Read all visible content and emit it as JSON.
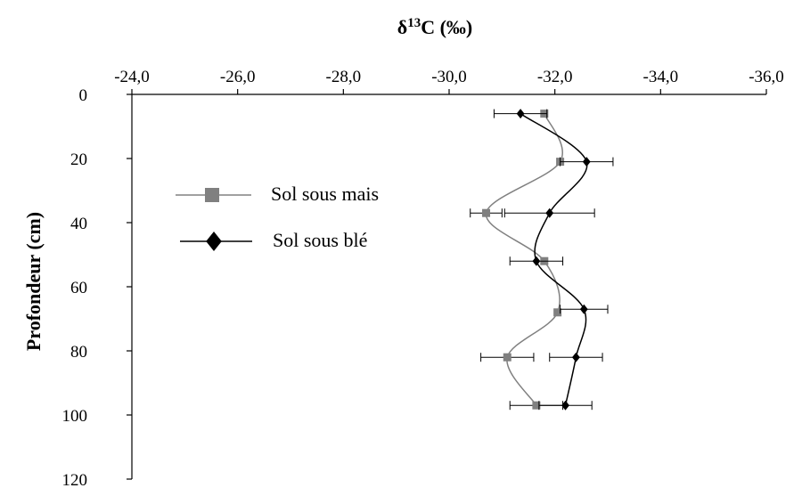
{
  "chart_data": {
    "type": "line",
    "xlabel": "δ13C (‰)",
    "xlabel_parts": {
      "prefix": "δ",
      "superscript": "13",
      "suffix": "C (‰)"
    },
    "ylabel": "Profondeur (cm)",
    "x_axis_position": "top",
    "x_reversed": true,
    "xlim": [
      -24.0,
      -36.0
    ],
    "ylim": [
      0,
      120
    ],
    "y_reversed": true,
    "x_ticks": [
      -24.0,
      -26.0,
      -28.0,
      -30.0,
      -32.0,
      -34.0,
      -36.0
    ],
    "x_tick_labels": [
      "-24,0",
      "-26,0",
      "-28,0",
      "-30,0",
      "-32,0",
      "-34,0",
      "-36,0"
    ],
    "y_ticks": [
      0,
      20,
      40,
      60,
      80,
      100,
      120
    ],
    "y_tick_labels": [
      "0",
      "20",
      "40",
      "60",
      "80",
      "100",
      "120"
    ],
    "grid": false,
    "legend_position": "left-center",
    "series": [
      {
        "name": "Sol sous mais",
        "color": "#808080",
        "marker": "square",
        "smooth": true,
        "points": [
          {
            "x": -31.8,
            "y": 6,
            "err": 0
          },
          {
            "x": -32.1,
            "y": 21,
            "err": 0
          },
          {
            "x": -30.7,
            "y": 37,
            "err": 0.3
          },
          {
            "x": -31.8,
            "y": 52,
            "err": 0
          },
          {
            "x": -32.05,
            "y": 68,
            "err": 0
          },
          {
            "x": -31.1,
            "y": 82,
            "err": 0.5
          },
          {
            "x": -31.65,
            "y": 97,
            "err": 0.5
          }
        ]
      },
      {
        "name": "Sol sous blé",
        "color": "#000000",
        "marker": "diamond",
        "smooth": true,
        "points": [
          {
            "x": -31.35,
            "y": 6,
            "err": 0.5
          },
          {
            "x": -32.6,
            "y": 21,
            "err": 0.5
          },
          {
            "x": -31.9,
            "y": 37,
            "err": 0.85
          },
          {
            "x": -31.65,
            "y": 52,
            "err": 0.5
          },
          {
            "x": -32.55,
            "y": 67,
            "err": 0.45
          },
          {
            "x": -32.4,
            "y": 82,
            "err": 0.5
          },
          {
            "x": -32.2,
            "y": 97,
            "err": 0.5
          }
        ]
      }
    ]
  }
}
